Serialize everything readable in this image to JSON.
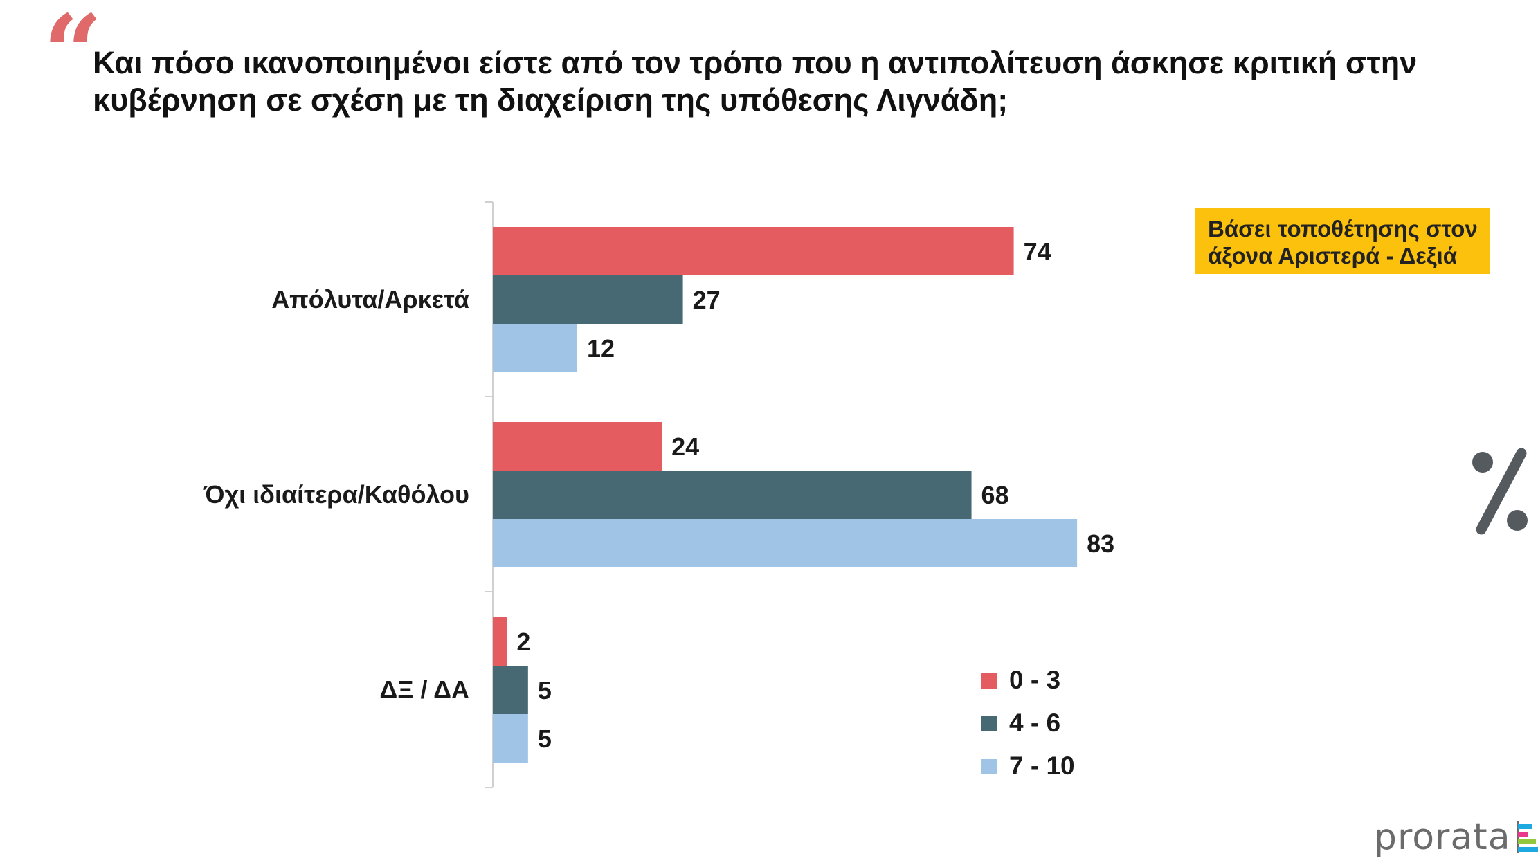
{
  "quote_glyph": "“",
  "title": "Και πόσο ικανοποιημένοι είστε από τον τρόπο που η αντιπολίτευση άσκησε κριτική στην κυβέρνηση σε σχέση με τη διαχείριση της υπόθεσης Λιγνάδη;",
  "badge": {
    "line1": "Βάσει τοποθέτησης στον",
    "line2": "άξονα Αριστερά - Δεξιά",
    "color": "#fcc10d"
  },
  "unit_symbol": "%",
  "logo": {
    "text": "prorata",
    "bar_colors": [
      "#1fa9e1",
      "#e8378c",
      "#93c83e",
      "#1fa9e1"
    ]
  },
  "chart_data": {
    "type": "bar",
    "orientation": "horizontal",
    "categories": [
      "Απόλυτα/Αρκετά",
      "Όχι ιδιαίτερα/Καθόλου",
      "ΔΞ / ΔΑ"
    ],
    "series": [
      {
        "name": "0 - 3",
        "color": "#e45c5f",
        "values": [
          74,
          24,
          2
        ]
      },
      {
        "name": "4 - 6",
        "color": "#466973",
        "values": [
          27,
          68,
          5
        ]
      },
      {
        "name": "7 - 10",
        "color": "#a0c4e6",
        "values": [
          12,
          83,
          5
        ]
      }
    ],
    "xlim": [
      0,
      100
    ],
    "grid": false,
    "legend_position": "bottom-right",
    "data_labels": true
  }
}
